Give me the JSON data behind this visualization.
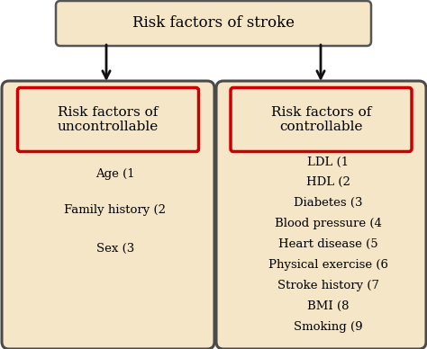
{
  "title": "Risk factors of stroke",
  "title_box_color": "#f5e6c8",
  "title_box_edge": "#555555",
  "title_fontsize": 12,
  "panel_bg": "#f5e6c8",
  "panel_edge": "#4a4a4a",
  "red_box_color": "#cc0000",
  "left_header": "Risk factors of\nuncontrollable",
  "right_header": "Risk factors of\ncontrollable",
  "left_items": [
    "Age (1",
    "Family history (2",
    "Sex (3"
  ],
  "right_items": [
    "LDL (1",
    "HDL (2",
    "Diabetes (3",
    "Blood pressure (4",
    "Heart disease (5",
    "Physical exercise (6",
    "Stroke history (7",
    "BMI (8",
    "Smoking (9"
  ],
  "item_fontsize": 9.5,
  "header_fontsize": 11,
  "bg_color": "#ffffff",
  "arrow_color": "#111111"
}
